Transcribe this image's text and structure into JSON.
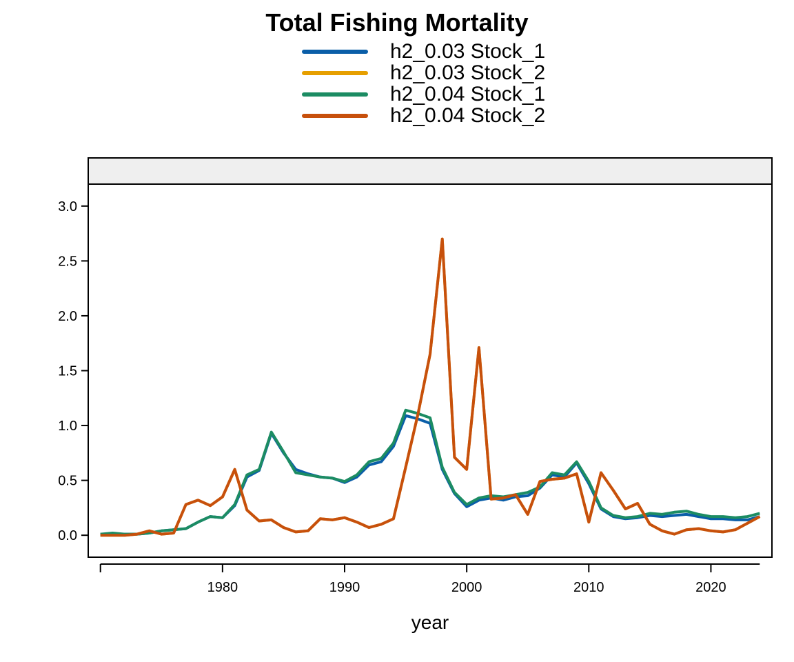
{
  "chart_data": {
    "type": "line",
    "title": "Total Fishing Mortality",
    "xlabel": "year",
    "ylabel": "",
    "xlim": [
      1969,
      2025
    ],
    "ylim": [
      -0.2,
      3.2
    ],
    "x_ticks": [
      1980,
      1990,
      2000,
      2010,
      2020
    ],
    "y_ticks": [
      "0.0",
      "0.5",
      "1.0",
      "1.5",
      "2.0",
      "2.5",
      "3.0"
    ],
    "strip_panel": true,
    "grid": false,
    "legend_position": "top",
    "x": [
      1970,
      1971,
      1972,
      1973,
      1974,
      1975,
      1976,
      1977,
      1978,
      1979,
      1980,
      1981,
      1982,
      1983,
      1984,
      1985,
      1986,
      1987,
      1988,
      1989,
      1990,
      1991,
      1992,
      1993,
      1994,
      1995,
      1996,
      1997,
      1998,
      1999,
      2000,
      2001,
      2002,
      2003,
      2004,
      2005,
      2006,
      2007,
      2008,
      2009,
      2010,
      2011,
      2012,
      2013,
      2014,
      2015,
      2016,
      2017,
      2018,
      2019,
      2020,
      2021,
      2022,
      2023,
      2024
    ],
    "series": [
      {
        "name": "h2_0.03 Stock_1",
        "color": "#0a5ea8",
        "values": [
          0.01,
          0.01,
          0.01,
          0.01,
          0.02,
          0.04,
          0.05,
          0.06,
          0.12,
          0.17,
          0.16,
          0.27,
          0.53,
          0.59,
          0.93,
          0.75,
          0.6,
          0.56,
          0.53,
          0.52,
          0.48,
          0.53,
          0.64,
          0.67,
          0.81,
          1.09,
          1.06,
          1.02,
          0.6,
          0.38,
          0.26,
          0.32,
          0.34,
          0.32,
          0.35,
          0.36,
          0.43,
          0.55,
          0.53,
          0.66,
          0.47,
          0.24,
          0.17,
          0.15,
          0.16,
          0.18,
          0.17,
          0.18,
          0.19,
          0.17,
          0.15,
          0.15,
          0.14,
          0.14,
          0.17
        ]
      },
      {
        "name": "h2_0.03 Stock_2",
        "color": "#e69f00",
        "values": [
          0.0,
          0.0,
          0.0,
          0.01,
          0.04,
          0.01,
          0.02,
          0.28,
          0.32,
          0.27,
          0.35,
          0.6,
          0.23,
          0.13,
          0.14,
          0.07,
          0.03,
          0.04,
          0.15,
          0.14,
          0.16,
          0.12,
          0.07,
          0.1,
          0.15,
          0.62,
          1.1,
          1.65,
          2.7,
          0.71,
          0.6,
          1.71,
          0.33,
          0.34,
          0.37,
          0.19,
          0.49,
          0.51,
          0.52,
          0.56,
          0.12,
          0.57,
          0.41,
          0.24,
          0.29,
          0.1,
          0.04,
          0.01,
          0.05,
          0.06,
          0.04,
          0.03,
          0.05,
          0.11,
          0.17
        ]
      },
      {
        "name": "h2_0.04 Stock_1",
        "color": "#1c8c63",
        "values": [
          0.01,
          0.02,
          0.01,
          0.01,
          0.02,
          0.04,
          0.05,
          0.06,
          0.12,
          0.17,
          0.16,
          0.28,
          0.55,
          0.6,
          0.94,
          0.76,
          0.57,
          0.55,
          0.53,
          0.52,
          0.49,
          0.55,
          0.67,
          0.7,
          0.84,
          1.14,
          1.11,
          1.07,
          0.62,
          0.39,
          0.28,
          0.34,
          0.36,
          0.35,
          0.37,
          0.39,
          0.44,
          0.57,
          0.55,
          0.67,
          0.49,
          0.25,
          0.18,
          0.16,
          0.17,
          0.2,
          0.19,
          0.21,
          0.22,
          0.19,
          0.17,
          0.17,
          0.16,
          0.17,
          0.2
        ]
      },
      {
        "name": "h2_0.04 Stock_2",
        "color": "#c7500c",
        "values": [
          0.0,
          0.0,
          0.0,
          0.01,
          0.04,
          0.01,
          0.02,
          0.28,
          0.32,
          0.27,
          0.35,
          0.6,
          0.23,
          0.13,
          0.14,
          0.07,
          0.03,
          0.04,
          0.15,
          0.14,
          0.16,
          0.12,
          0.07,
          0.1,
          0.15,
          0.62,
          1.1,
          1.65,
          2.7,
          0.71,
          0.6,
          1.71,
          0.33,
          0.34,
          0.37,
          0.19,
          0.49,
          0.51,
          0.52,
          0.56,
          0.12,
          0.57,
          0.41,
          0.24,
          0.29,
          0.1,
          0.04,
          0.01,
          0.05,
          0.06,
          0.04,
          0.03,
          0.05,
          0.11,
          0.17
        ]
      }
    ]
  }
}
